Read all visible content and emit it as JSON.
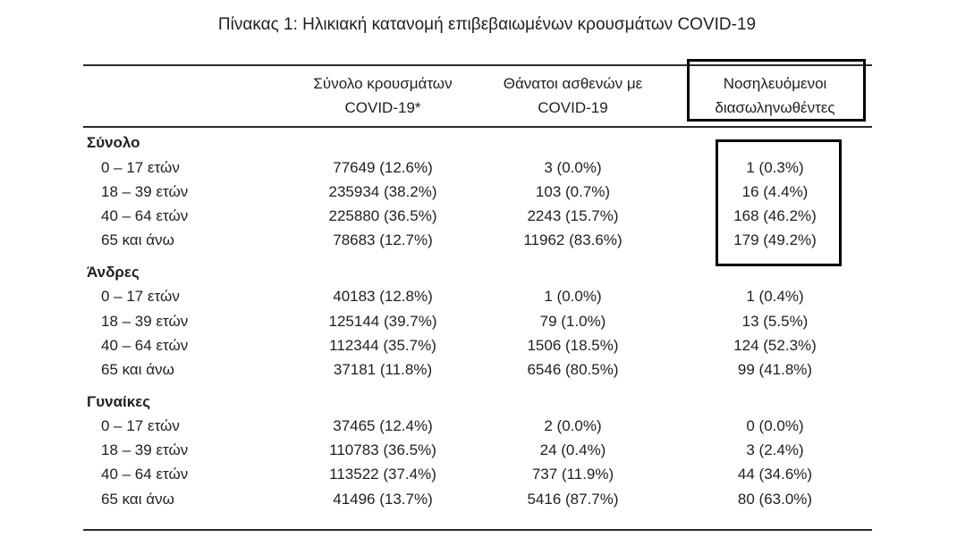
{
  "page": {
    "title": "Πίνακας 1: Ηλικιακή κατανομή επιβεβαιωμένων κρουσμάτων COVID-19"
  },
  "colors": {
    "text": "#1c1f26",
    "rule_lines": "#2a2a2a",
    "highlight_box": "#000000",
    "background": "#ffffff"
  },
  "table": {
    "columns": [
      {
        "line1": "",
        "line2": ""
      },
      {
        "line1": "Σύνολο κρουσμάτων",
        "line2": "COVID-19*"
      },
      {
        "line1": "Θάνατοι ασθενών με",
        "line2": "COVID-19"
      },
      {
        "line1": "Νοσηλευόμενοι",
        "line2": "διασωληνωθέντες"
      }
    ],
    "groups": [
      {
        "label": "Σύνολο",
        "rows": [
          {
            "label": "0 – 17 ετών",
            "cases": "77649 (12.6%)",
            "deaths": "3 (0.0%)",
            "intubated": "1 (0.3%)"
          },
          {
            "label": "18 – 39 ετών",
            "cases": "235934 (38.2%)",
            "deaths": "103 (0.7%)",
            "intubated": "16 (4.4%)"
          },
          {
            "label": "40 – 64 ετών",
            "cases": "225880 (36.5%)",
            "deaths": "2243 (15.7%)",
            "intubated": "168 (46.2%)"
          },
          {
            "label": "65 και άνω",
            "cases": "78683 (12.7%)",
            "deaths": "11962 (83.6%)",
            "intubated": "179 (49.2%)"
          }
        ]
      },
      {
        "label": "Άνδρες",
        "rows": [
          {
            "label": "0 – 17 ετών",
            "cases": "40183 (12.8%)",
            "deaths": "1 (0.0%)",
            "intubated": "1 (0.4%)"
          },
          {
            "label": "18 – 39 ετών",
            "cases": "125144 (39.7%)",
            "deaths": "79 (1.0%)",
            "intubated": "13 (5.5%)"
          },
          {
            "label": "40 – 64 ετών",
            "cases": "112344 (35.7%)",
            "deaths": "1506 (18.5%)",
            "intubated": "124 (52.3%)"
          },
          {
            "label": "65 και άνω",
            "cases": "37181 (11.8%)",
            "deaths": "6546 (80.5%)",
            "intubated": "99 (41.8%)"
          }
        ]
      },
      {
        "label": "Γυναίκες",
        "rows": [
          {
            "label": "0 – 17 ετών",
            "cases": "37465 (12.4%)",
            "deaths": "2 (0.0%)",
            "intubated": "0 (0.0%)"
          },
          {
            "label": "18 – 39 ετών",
            "cases": "110783 (36.5%)",
            "deaths": "24 (0.4%)",
            "intubated": "3 (2.4%)"
          },
          {
            "label": "40 – 64 ετών",
            "cases": "113522 (37.4%)",
            "deaths": "737 (11.9%)",
            "intubated": "44 (34.6%)"
          },
          {
            "label": "65 και άνω",
            "cases": "41496 (13.7%)",
            "deaths": "5416 (87.7%)",
            "intubated": "80 (63.0%)"
          }
        ]
      }
    ]
  }
}
